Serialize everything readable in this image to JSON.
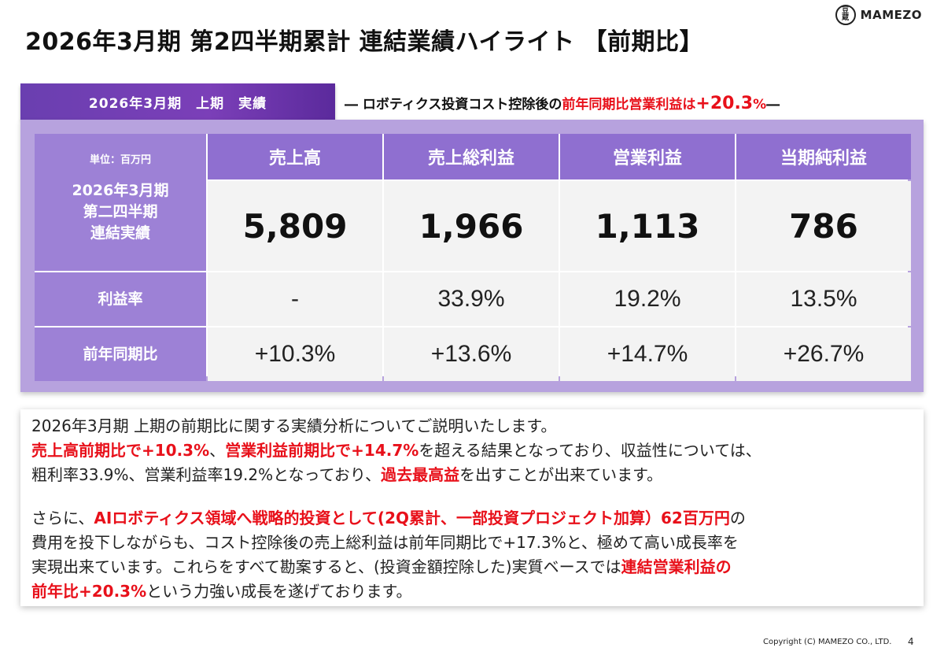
{
  "title": "2026年3月期 第2四半期累計 連結業績ハイライト 【前期比】",
  "logo": {
    "mark_top": "豆",
    "mark_bottom": "蔵",
    "text": "MAMEZO"
  },
  "period_tab": "2026年3月期　上期　実績",
  "subtitle": {
    "prefix": "― ロボティクス投資コスト控除後の",
    "highlight": "前年同期比営業利益は",
    "value": "+20.3",
    "unit": "%",
    "suffix": "―"
  },
  "table": {
    "unit": "単位：百万円",
    "row_label_lines": [
      "2026年3月期",
      "第二四半期",
      "連結実績"
    ],
    "columns": [
      "売上高",
      "売上総利益",
      "営業利益",
      "当期純利益"
    ],
    "actuals": [
      "5,809",
      "1,966",
      "1,113",
      "786"
    ],
    "margin_label": "利益率",
    "margins": [
      "-",
      "33.9%",
      "19.2%",
      "13.5%"
    ],
    "yoy_label": "前年同期比",
    "yoy": [
      "+10.3%",
      "+13.6%",
      "+14.7%",
      "+26.7%"
    ]
  },
  "commentary": {
    "l1": "2026年3月期 上期の前期比に関する実績分析についてご説明いたします。",
    "l2_red1": "売上高前期比で+10.3%",
    "l2_sep": "、",
    "l2_red2": "営業利益前期比で+14.7%",
    "l2_tail": "を超える結果となっており、収益性については、",
    "l3_a": "粗利率33.9%、営業利益率19.2%となっており、",
    "l3_red": "過去最高益",
    "l3_b": "を出すことが出来ています。",
    "p2_a": "さらに、",
    "p2_red": "AIロボティクス領域へ戦略的投資として(2Q累計、一部投資プロジェクト加算）62百万円",
    "p2_b": "の",
    "p2_l2": "費用を投下しながらも、コスト控除後の売上総利益は前年同期比で+17.3%と、極めて高い成長率を",
    "p2_l3_a": "実現出来ています。これらをすべて勘案すると、(投資金額控除した)実質ベースでは",
    "p2_l3_red": "連結営業利益の",
    "p2_l4_red": "前年比+20.3%",
    "p2_l4_b": "という力強い成長を遂げております。"
  },
  "footer": {
    "copyright": "Copyright (C) MAMEZO  CO., LTD.",
    "page": "4"
  }
}
